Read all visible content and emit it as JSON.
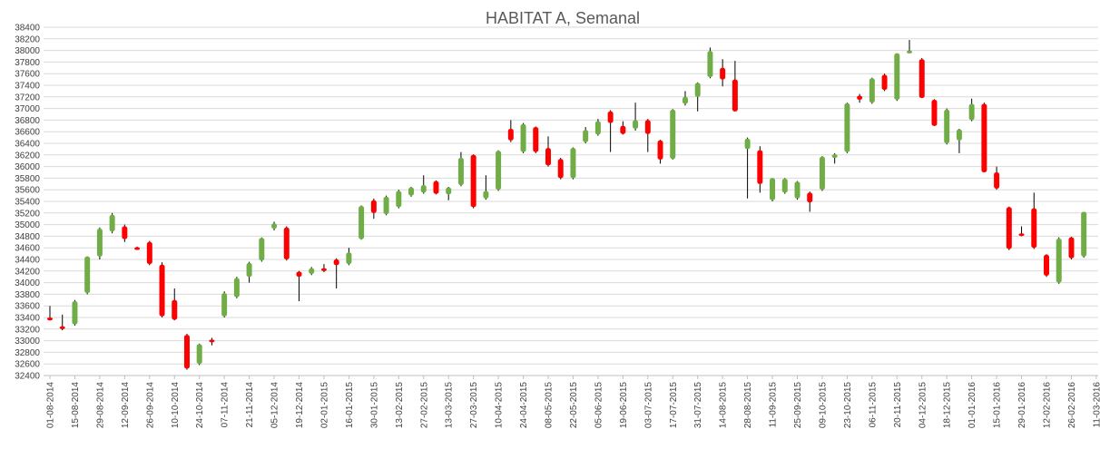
{
  "chart_data": {
    "type": "candlestick",
    "title": "HABITAT A, Semanal",
    "xlabel": "",
    "ylabel": "",
    "ylim": [
      32400,
      38400
    ],
    "y_ticks": [
      32400,
      32600,
      32800,
      33000,
      33200,
      33400,
      33600,
      33800,
      34000,
      34200,
      34400,
      34600,
      34800,
      35000,
      35200,
      35400,
      35600,
      35800,
      36000,
      36200,
      36400,
      36600,
      36800,
      37000,
      37200,
      37400,
      37600,
      37800,
      38000,
      38200,
      38400
    ],
    "x_tick_labels": [
      "01-08-2014",
      "15-08-2014",
      "29-08-2014",
      "12-09-2014",
      "26-09-2014",
      "10-10-2014",
      "24-10-2014",
      "07-11-2014",
      "21-11-2014",
      "05-12-2014",
      "19-12-2014",
      "02-01-2015",
      "16-01-2015",
      "30-01-2015",
      "13-02-2015",
      "27-02-2015",
      "13-03-2015",
      "27-03-2015",
      "10-04-2015",
      "24-04-2015",
      "08-05-2015",
      "22-05-2015",
      "05-06-2015",
      "19-06-2015",
      "03-07-2015",
      "17-07-2015",
      "31-07-2015",
      "14-08-2015",
      "28-08-2015",
      "11-09-2015",
      "25-09-2015",
      "09-10-2015",
      "23-10-2015",
      "06-11-2015",
      "20-11-2015",
      "04-12-2015",
      "18-12-2015",
      "01-01-2016",
      "15-01-2016",
      "29-01-2016",
      "12-02-2016",
      "26-02-2016",
      "11-03-2016"
    ],
    "grid": true,
    "legend": "none",
    "colors": {
      "up": "#70ad47",
      "down": "#ff0000",
      "wick": "#000000",
      "grid": "#d9d9d9",
      "axis": "#bfbfbf"
    },
    "candles": [
      {
        "open": 33400,
        "high": 33600,
        "low": 33350,
        "close": 33350
      },
      {
        "open": 33250,
        "high": 33450,
        "low": 33180,
        "close": 33200
      },
      {
        "open": 33280,
        "high": 33700,
        "low": 33260,
        "close": 33680
      },
      {
        "open": 33820,
        "high": 34450,
        "low": 33800,
        "close": 34450
      },
      {
        "open": 34450,
        "high": 34950,
        "low": 34400,
        "close": 34930
      },
      {
        "open": 34880,
        "high": 35200,
        "low": 34850,
        "close": 35170
      },
      {
        "open": 34970,
        "high": 35000,
        "low": 34700,
        "close": 34750
      },
      {
        "open": 34610,
        "high": 34620,
        "low": 34570,
        "close": 34580
      },
      {
        "open": 34700,
        "high": 34720,
        "low": 34300,
        "close": 34320
      },
      {
        "open": 34310,
        "high": 34350,
        "low": 33400,
        "close": 33420
      },
      {
        "open": 33700,
        "high": 33900,
        "low": 33350,
        "close": 33360
      },
      {
        "open": 33100,
        "high": 33120,
        "low": 32500,
        "close": 32520
      },
      {
        "open": 32600,
        "high": 32950,
        "low": 32580,
        "close": 32940
      },
      {
        "open": 33020,
        "high": 33050,
        "low": 32920,
        "close": 32980
      },
      {
        "open": 33420,
        "high": 33850,
        "low": 33400,
        "close": 33820
      },
      {
        "open": 33750,
        "high": 34100,
        "low": 33730,
        "close": 34080
      },
      {
        "open": 34100,
        "high": 34360,
        "low": 34000,
        "close": 34340
      },
      {
        "open": 34380,
        "high": 34780,
        "low": 34360,
        "close": 34770
      },
      {
        "open": 34930,
        "high": 35050,
        "low": 34900,
        "close": 35020
      },
      {
        "open": 34950,
        "high": 34970,
        "low": 34380,
        "close": 34400
      },
      {
        "open": 34190,
        "high": 34200,
        "low": 33680,
        "close": 34100
      },
      {
        "open": 34150,
        "high": 34270,
        "low": 34130,
        "close": 34250
      },
      {
        "open": 34250,
        "high": 34320,
        "low": 34180,
        "close": 34200
      },
      {
        "open": 34400,
        "high": 34420,
        "low": 33900,
        "close": 34300
      },
      {
        "open": 34320,
        "high": 34600,
        "low": 34300,
        "close": 34520
      },
      {
        "open": 34750,
        "high": 35330,
        "low": 34740,
        "close": 35320
      },
      {
        "open": 35420,
        "high": 35450,
        "low": 35100,
        "close": 35200
      },
      {
        "open": 35180,
        "high": 35500,
        "low": 35160,
        "close": 35480
      },
      {
        "open": 35300,
        "high": 35600,
        "low": 35280,
        "close": 35580
      },
      {
        "open": 35500,
        "high": 35650,
        "low": 35480,
        "close": 35640
      },
      {
        "open": 35550,
        "high": 35850,
        "low": 35530,
        "close": 35680
      },
      {
        "open": 35750,
        "high": 35760,
        "low": 35520,
        "close": 35530
      },
      {
        "open": 35520,
        "high": 35650,
        "low": 35420,
        "close": 35640
      },
      {
        "open": 35680,
        "high": 36250,
        "low": 35660,
        "close": 36150
      },
      {
        "open": 36200,
        "high": 36210,
        "low": 35280,
        "close": 35300
      },
      {
        "open": 35450,
        "high": 35850,
        "low": 35430,
        "close": 35580
      },
      {
        "open": 35600,
        "high": 36280,
        "low": 35580,
        "close": 36270
      },
      {
        "open": 36650,
        "high": 36800,
        "low": 36420,
        "close": 36450
      },
      {
        "open": 36250,
        "high": 36750,
        "low": 36230,
        "close": 36730
      },
      {
        "open": 36680,
        "high": 36690,
        "low": 36230,
        "close": 36250
      },
      {
        "open": 36320,
        "high": 36520,
        "low": 36000,
        "close": 36020
      },
      {
        "open": 36130,
        "high": 36150,
        "low": 35780,
        "close": 35800
      },
      {
        "open": 35800,
        "high": 36330,
        "low": 35780,
        "close": 36320
      },
      {
        "open": 36420,
        "high": 36680,
        "low": 36400,
        "close": 36630
      },
      {
        "open": 36550,
        "high": 36820,
        "low": 36530,
        "close": 36780
      },
      {
        "open": 36950,
        "high": 36970,
        "low": 36250,
        "close": 36750
      },
      {
        "open": 36700,
        "high": 36780,
        "low": 36550,
        "close": 36560
      },
      {
        "open": 36650,
        "high": 37100,
        "low": 36620,
        "close": 36800
      },
      {
        "open": 36800,
        "high": 36820,
        "low": 36250,
        "close": 36560
      },
      {
        "open": 36450,
        "high": 36460,
        "low": 36050,
        "close": 36120
      },
      {
        "open": 36130,
        "high": 36990,
        "low": 36120,
        "close": 36980
      },
      {
        "open": 37080,
        "high": 37300,
        "low": 37050,
        "close": 37200
      },
      {
        "open": 37200,
        "high": 37450,
        "low": 36950,
        "close": 37440
      },
      {
        "open": 37540,
        "high": 38050,
        "low": 37520,
        "close": 37990
      },
      {
        "open": 37700,
        "high": 37850,
        "low": 37380,
        "close": 37500
      },
      {
        "open": 37500,
        "high": 37820,
        "low": 36950,
        "close": 36950
      },
      {
        "open": 36300,
        "high": 36500,
        "low": 35450,
        "close": 36480
      },
      {
        "open": 36280,
        "high": 36350,
        "low": 35550,
        "close": 35700
      },
      {
        "open": 35420,
        "high": 35800,
        "low": 35400,
        "close": 35800
      },
      {
        "open": 35550,
        "high": 35800,
        "low": 35530,
        "close": 35790
      },
      {
        "open": 35450,
        "high": 35750,
        "low": 35430,
        "close": 35740
      },
      {
        "open": 35550,
        "high": 35570,
        "low": 35220,
        "close": 35380
      },
      {
        "open": 35600,
        "high": 36180,
        "low": 35580,
        "close": 36170
      },
      {
        "open": 36150,
        "high": 36230,
        "low": 36050,
        "close": 36210
      },
      {
        "open": 36250,
        "high": 37100,
        "low": 36230,
        "close": 37090
      },
      {
        "open": 37220,
        "high": 37250,
        "low": 37100,
        "close": 37150
      },
      {
        "open": 37100,
        "high": 37530,
        "low": 37080,
        "close": 37520
      },
      {
        "open": 37580,
        "high": 37600,
        "low": 37300,
        "close": 37320
      },
      {
        "open": 37150,
        "high": 37950,
        "low": 37130,
        "close": 37950
      },
      {
        "open": 37950,
        "high": 38180,
        "low": 37950,
        "close": 38000
      },
      {
        "open": 37850,
        "high": 37870,
        "low": 37180,
        "close": 37180
      },
      {
        "open": 37150,
        "high": 37160,
        "low": 36700,
        "close": 36700
      },
      {
        "open": 36400,
        "high": 37000,
        "low": 36380,
        "close": 36980
      },
      {
        "open": 36450,
        "high": 36650,
        "low": 36230,
        "close": 36640
      },
      {
        "open": 36800,
        "high": 37170,
        "low": 36780,
        "close": 37080
      },
      {
        "open": 37080,
        "high": 37100,
        "low": 35900,
        "close": 35900
      },
      {
        "open": 35900,
        "high": 36000,
        "low": 35600,
        "close": 35620
      },
      {
        "open": 35300,
        "high": 35310,
        "low": 34560,
        "close": 34580
      },
      {
        "open": 34850,
        "high": 34970,
        "low": 34800,
        "close": 34830
      },
      {
        "open": 35280,
        "high": 35550,
        "low": 34580,
        "close": 34600
      },
      {
        "open": 34480,
        "high": 34490,
        "low": 34100,
        "close": 34120
      },
      {
        "open": 34000,
        "high": 34780,
        "low": 33980,
        "close": 34760
      },
      {
        "open": 34780,
        "high": 34790,
        "low": 34400,
        "close": 34420
      },
      {
        "open": 34450,
        "high": 35220,
        "low": 34430,
        "close": 35220
      }
    ]
  }
}
